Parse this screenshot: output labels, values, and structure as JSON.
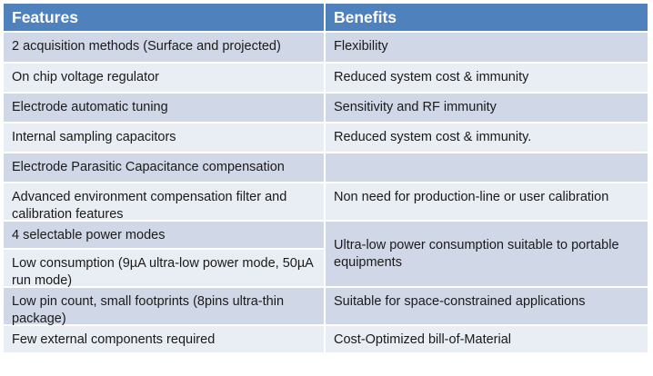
{
  "table": {
    "headers": {
      "features": "Features",
      "benefits": "Benefits"
    },
    "features": [
      "2 acquisition methods (Surface and projected)",
      "On chip voltage regulator",
      "Electrode automatic tuning",
      "Internal sampling capacitors",
      "Electrode Parasitic Capacitance compensation",
      "Advanced environment compensation filter and calibration features",
      "4 selectable power modes",
      "Low consumption (9µA ultra-low power mode, 50µA run mode)",
      "Low pin count, small footprints (8pins ultra-thin package)",
      "Few external components required"
    ],
    "benefits": [
      "Flexibility",
      "Reduced system cost & immunity",
      "Sensitivity and RF immunity",
      "Reduced system cost & immunity.",
      "",
      "Non need for production-line or user calibration",
      "Ultra-low power consumption suitable to portable equipments",
      "Suitable for space-constrained applications",
      "Cost-Optimized bill-of-Material"
    ]
  }
}
